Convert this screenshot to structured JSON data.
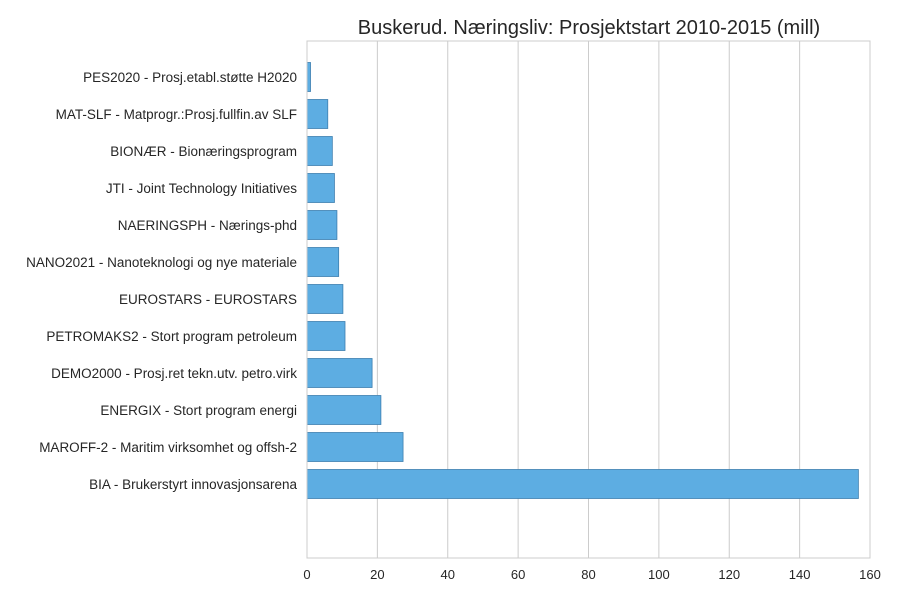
{
  "chart_data": {
    "type": "bar",
    "orientation": "horizontal",
    "title": "Buskerud. Næringsliv: Prosjektstart 2010-2015 (mill)",
    "xlabel": "",
    "ylabel": "",
    "xlim": [
      0,
      160
    ],
    "x_ticks": [
      0,
      20,
      40,
      60,
      80,
      100,
      120,
      140,
      160
    ],
    "grid": true,
    "legend": "none",
    "bar_color": "#5DADE2",
    "bar_edge_color": "#3E7FB0",
    "categories": [
      "BIA - Brukerstyrt innovasjonsarena",
      "MAROFF-2 - Maritim virksomhet og offsh-2",
      "ENERGIX - Stort program energi",
      "DEMO2000 - Prosj.ret tekn.utv. petro.virk",
      "PETROMAKS2 - Stort program petroleum",
      "EUROSTARS - EUROSTARS",
      "NANO2021 - Nanoteknologi og nye materiale",
      "NAERINGSPH - Nærings-phd",
      "JTI - Joint Technology Initiatives",
      "BIONÆR - Bionæringsprogram",
      "MAT-SLF - Matprogr.:Prosj.fullfin.av SLF",
      "PES2020 - Prosj.etabl.støtte H2020"
    ],
    "values": [
      156.7,
      27.3,
      21.0,
      18.5,
      10.8,
      10.2,
      9.0,
      8.5,
      7.8,
      7.2,
      5.9,
      1.0
    ]
  }
}
